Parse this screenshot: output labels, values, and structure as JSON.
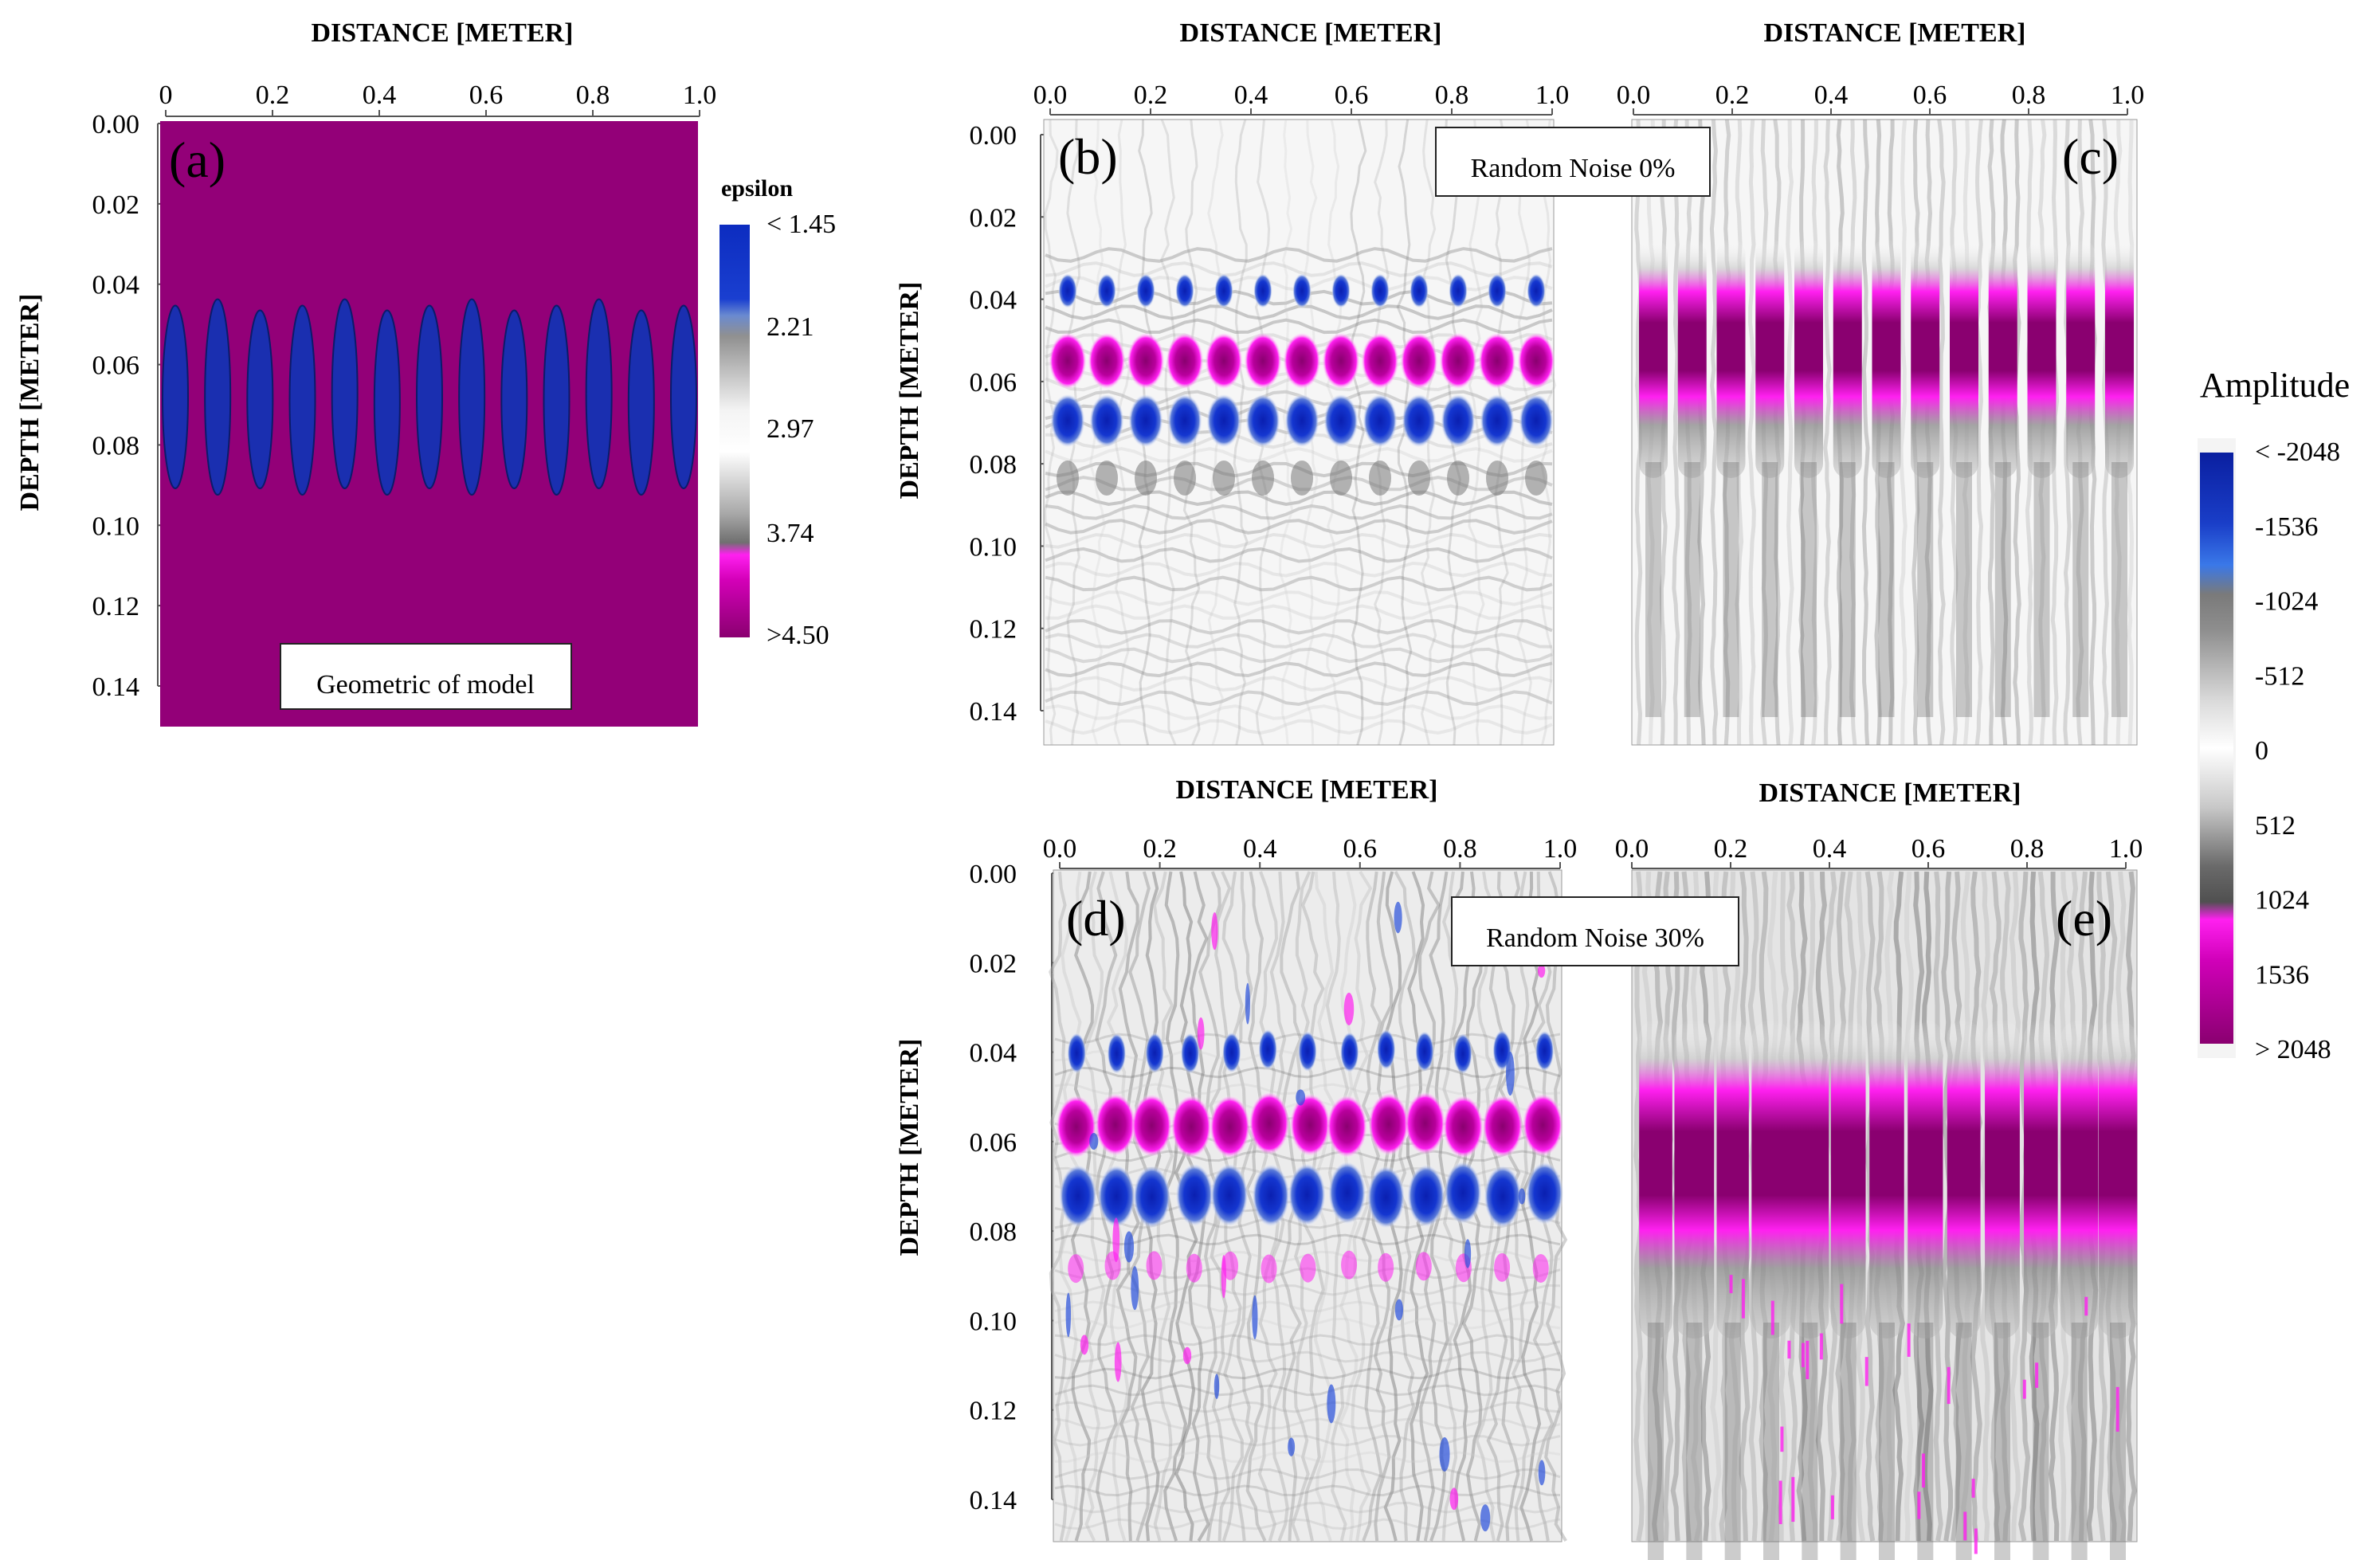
{
  "chart_data": [
    {
      "type": "heatmap",
      "panel": "(a)",
      "xlabel": "DISTANCE [METER]",
      "ylabel": "DEPTH [METER]",
      "xticks": [
        "0",
        "0.2",
        "0.4",
        "0.6",
        "0.8",
        "1.0"
      ],
      "yticks": [
        "0.00",
        "0.02",
        "0.04",
        "0.06",
        "0.08",
        "0.10",
        "0.12",
        "0.14"
      ],
      "xlim": [
        0,
        1.0
      ],
      "ylim": [
        0,
        0.15
      ],
      "annotation": "Geometric of model",
      "objects": {
        "count": 13,
        "depth_top": 0.046,
        "depth_bottom": 0.092
      },
      "colorbar": {
        "title": "epsilon",
        "labels": [
          "< 1.45",
          "2.21",
          "2.97",
          "3.74",
          ">4.50"
        ],
        "colors": [
          "#1030b8",
          "#888888",
          "#ffffff",
          "#777777",
          "#ff10e0",
          "#8a0070"
        ]
      },
      "background_color": "#930078",
      "object_color": "#1a2fb0"
    },
    {
      "type": "heatmap",
      "panel": "(b)",
      "xlabel": "DISTANCE [METER]",
      "ylabel": "DEPTH [METER]",
      "xticks": [
        "0.0",
        "0.2",
        "0.4",
        "0.6",
        "0.8",
        "1.0"
      ],
      "yticks": [
        "0.00",
        "0.02",
        "0.04",
        "0.06",
        "0.08",
        "0.10",
        "0.12",
        "0.14"
      ],
      "annotation": "Random Noise 0%",
      "noise_percent": 0
    },
    {
      "type": "heatmap",
      "panel": "(c)",
      "xlabel": "DISTANCE [METER]",
      "xticks": [
        "0.0",
        "0.2",
        "0.4",
        "0.6",
        "0.8",
        "1.0"
      ],
      "noise_percent": 0
    },
    {
      "type": "heatmap",
      "panel": "(d)",
      "xlabel": "DISTANCE [METER]",
      "ylabel": "DEPTH [METER]",
      "xticks": [
        "0.0",
        "0.2",
        "0.4",
        "0.6",
        "0.8",
        "1.0"
      ],
      "yticks": [
        "0.00",
        "0.02",
        "0.04",
        "0.06",
        "0.08",
        "0.10",
        "0.12",
        "0.14"
      ],
      "annotation": "Random Noise 30%",
      "noise_percent": 30
    },
    {
      "type": "heatmap",
      "panel": "(e)",
      "xlabel": "DISTANCE [METER]",
      "xticks": [
        "0.0",
        "0.2",
        "0.4",
        "0.6",
        "0.8",
        "1.0"
      ],
      "noise_percent": 30
    }
  ],
  "amplitude_colorbar": {
    "title": "Amplitude",
    "labels": [
      "< -2048",
      "-1536",
      "-1024",
      "-512",
      "0",
      "512",
      "1024",
      "1536",
      "> 2048"
    ],
    "colors": [
      "#0a1fa0",
      "#2e6fe0",
      "#666666",
      "#d0d0d0",
      "#ffffff",
      "#b0b0b0",
      "#555555",
      "#ff10e0",
      "#8a0070"
    ]
  }
}
